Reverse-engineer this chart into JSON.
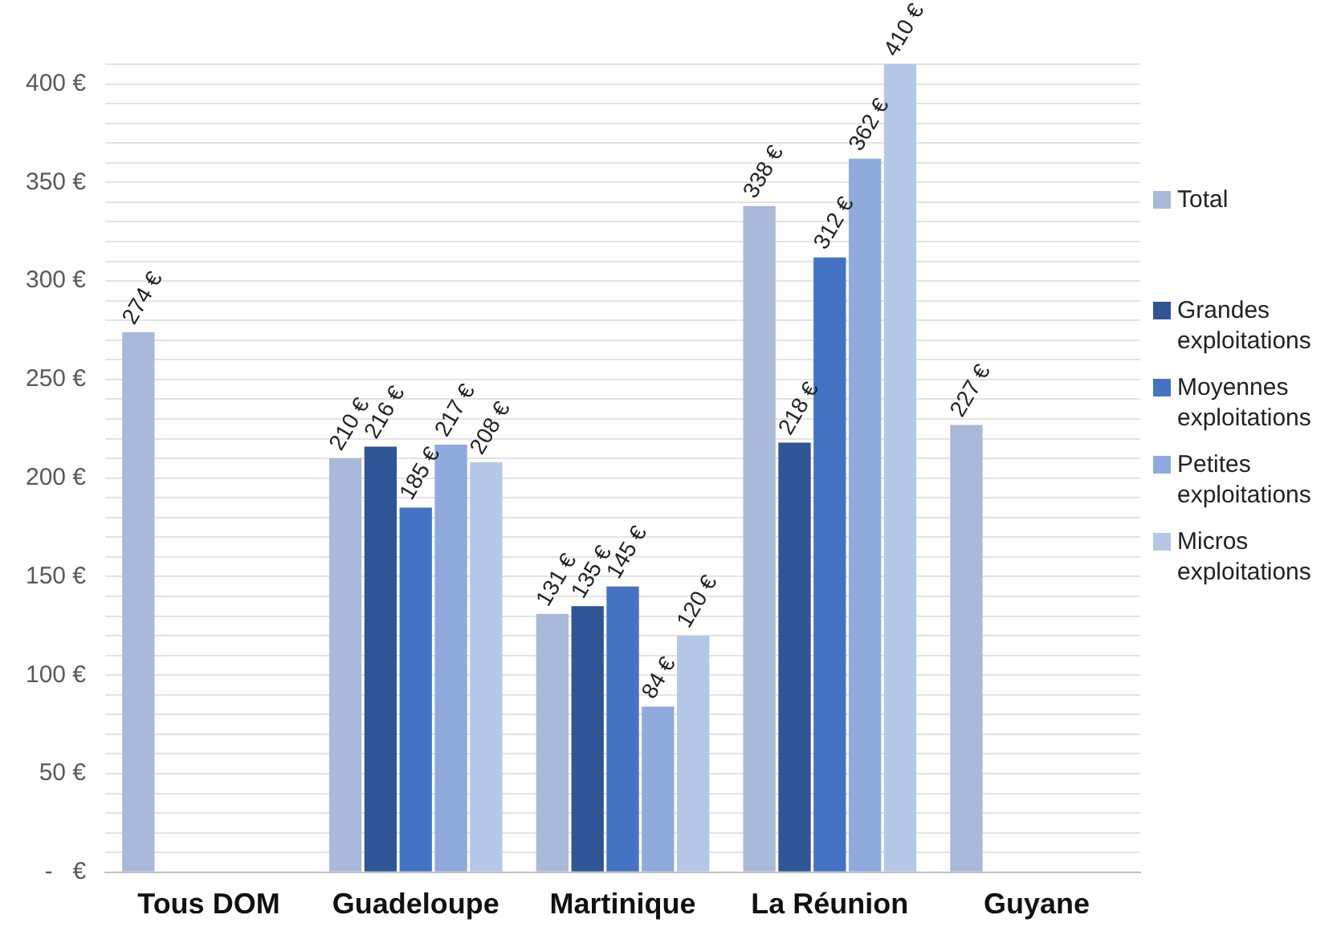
{
  "chart_data": {
    "type": "bar",
    "categories": [
      "Tous DOM",
      "Guadeloupe",
      "Martinique",
      "La Réunion",
      "Guyane"
    ],
    "series": [
      {
        "name": "Total",
        "color": "#a9b9d9",
        "values": [
          274,
          210,
          131,
          338,
          227
        ],
        "value_labels": [
          "274 €",
          "210 €",
          "131 €",
          "338 €",
          "227 €"
        ]
      },
      {
        "name": "Grandes exploitations",
        "color": "#2f5597",
        "values": [
          null,
          216,
          135,
          218,
          null
        ],
        "value_labels": [
          null,
          "216 €",
          "135 €",
          "218 €",
          null
        ]
      },
      {
        "name": "Moyennes exploitations",
        "color": "#4472c4",
        "values": [
          null,
          185,
          145,
          312,
          null
        ],
        "value_labels": [
          null,
          "185 €",
          "145 €",
          "312 €",
          null
        ]
      },
      {
        "name": "Petites exploitations",
        "color": "#8faadc",
        "values": [
          null,
          217,
          84,
          362,
          null
        ],
        "value_labels": [
          null,
          "217 €",
          "84 €",
          "362 €",
          null
        ]
      },
      {
        "name": "Micros exploitations",
        "color": "#b4c7e7",
        "values": [
          null,
          208,
          120,
          410,
          null
        ],
        "value_labels": [
          null,
          "208 €",
          "120 €",
          "410 €",
          null
        ]
      }
    ],
    "ylim": [
      0,
      410
    ],
    "yticks": [
      {
        "value": 0,
        "label": "-   €"
      },
      {
        "value": 10,
        "label": null
      },
      {
        "value": 20,
        "label": null
      },
      {
        "value": 30,
        "label": null
      },
      {
        "value": 40,
        "label": null
      },
      {
        "value": 50,
        "label": "50 €"
      },
      {
        "value": 60,
        "label": null
      },
      {
        "value": 70,
        "label": null
      },
      {
        "value": 80,
        "label": null
      },
      {
        "value": 90,
        "label": null
      },
      {
        "value": 100,
        "label": "100 €"
      },
      {
        "value": 110,
        "label": null
      },
      {
        "value": 120,
        "label": null
      },
      {
        "value": 130,
        "label": null
      },
      {
        "value": 140,
        "label": null
      },
      {
        "value": 150,
        "label": "150 €"
      },
      {
        "value": 160,
        "label": null
      },
      {
        "value": 170,
        "label": null
      },
      {
        "value": 180,
        "label": null
      },
      {
        "value": 190,
        "label": null
      },
      {
        "value": 200,
        "label": "200 €"
      },
      {
        "value": 210,
        "label": null
      },
      {
        "value": 220,
        "label": null
      },
      {
        "value": 230,
        "label": null
      },
      {
        "value": 240,
        "label": null
      },
      {
        "value": 250,
        "label": "250 €"
      },
      {
        "value": 260,
        "label": null
      },
      {
        "value": 270,
        "label": null
      },
      {
        "value": 280,
        "label": null
      },
      {
        "value": 290,
        "label": null
      },
      {
        "value": 300,
        "label": "300 €"
      },
      {
        "value": 310,
        "label": null
      },
      {
        "value": 320,
        "label": null
      },
      {
        "value": 330,
        "label": null
      },
      {
        "value": 340,
        "label": null
      },
      {
        "value": 350,
        "label": "350 €"
      },
      {
        "value": 360,
        "label": null
      },
      {
        "value": 370,
        "label": null
      },
      {
        "value": 380,
        "label": null
      },
      {
        "value": 390,
        "label": null
      },
      {
        "value": 400,
        "label": "400 €"
      },
      {
        "value": 410,
        "label": null
      }
    ],
    "grid": "y",
    "legend": "right"
  }
}
